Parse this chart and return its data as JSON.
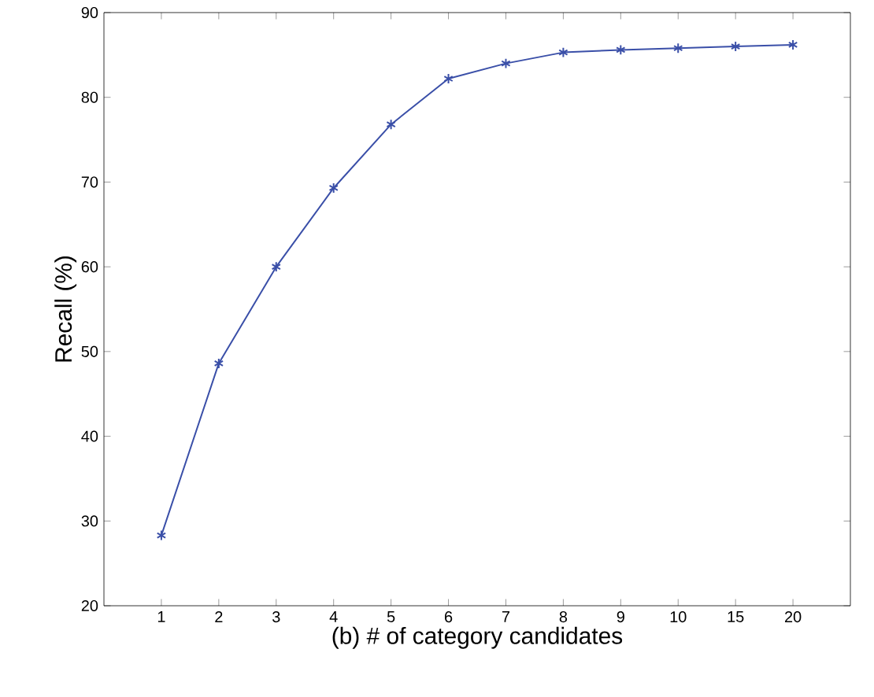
{
  "chart_data": {
    "type": "line",
    "xlabel": "(b) # of category candidates",
    "ylabel": "Recall (%)",
    "categories": [
      "1",
      "2",
      "3",
      "4",
      "5",
      "6",
      "7",
      "8",
      "9",
      "10",
      "15",
      "20"
    ],
    "series": [
      {
        "color": "#3a4fa8",
        "values": [
          28.3,
          48.6,
          60.0,
          69.3,
          76.8,
          82.2,
          84.0,
          85.3,
          85.6,
          85.8,
          86.0,
          86.2
        ]
      }
    ],
    "ylim": [
      20,
      90
    ],
    "yticks": [
      20,
      30,
      40,
      50,
      60,
      70,
      80,
      90
    ],
    "marker": "cross",
    "line_style": "solid",
    "grid": false
  }
}
